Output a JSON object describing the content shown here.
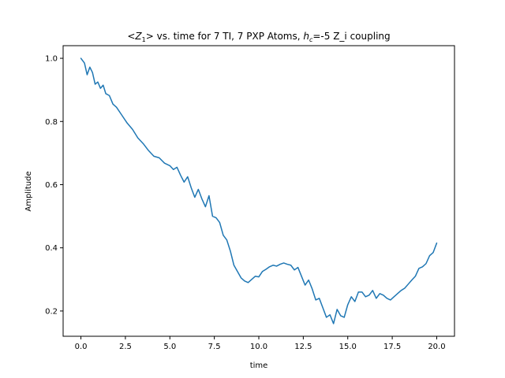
{
  "chart_data": {
    "type": "line",
    "title_parts": {
      "lt": "<",
      "z": "Z",
      "z_sub": "1",
      "gt": ">",
      "middle": " vs. time for 7 TI, 7 PXP Atoms, ",
      "h": "h",
      "h_sub": "c",
      "tail": "=-5 Z_i coupling"
    },
    "xlabel": "time",
    "ylabel": "Amplitude",
    "xlim": [
      -1.0,
      21.0
    ],
    "ylim": [
      0.12,
      1.04
    ],
    "xticks": [
      0.0,
      2.5,
      5.0,
      7.5,
      10.0,
      12.5,
      15.0,
      17.5,
      20.0
    ],
    "xtick_labels": [
      "0.0",
      "2.5",
      "5.0",
      "7.5",
      "10.0",
      "12.5",
      "15.0",
      "17.5",
      "20.0"
    ],
    "yticks": [
      0.2,
      0.4,
      0.6,
      0.8,
      1.0
    ],
    "ytick_labels": [
      "0.2",
      "0.4",
      "0.6",
      "0.8",
      "1.0"
    ],
    "grid": false,
    "line_color": "#1f77b4",
    "series": [
      {
        "x": [
          0.0,
          0.2,
          0.35,
          0.5,
          0.65,
          0.8,
          0.95,
          1.1,
          1.25,
          1.4,
          1.6,
          1.8,
          2.0,
          2.3,
          2.6,
          2.9,
          3.2,
          3.5,
          3.8,
          4.1,
          4.4,
          4.7,
          5.0,
          5.2,
          5.4,
          5.6,
          5.8,
          6.0,
          6.2,
          6.4,
          6.6,
          6.8,
          7.0,
          7.2,
          7.4,
          7.6,
          7.8,
          8.0,
          8.2,
          8.4,
          8.6,
          8.8,
          9.0,
          9.2,
          9.4,
          9.6,
          9.8,
          10.0,
          10.2,
          10.4,
          10.6,
          10.8,
          11.0,
          11.2,
          11.4,
          11.6,
          11.8,
          12.0,
          12.2,
          12.4,
          12.6,
          12.8,
          13.0,
          13.2,
          13.4,
          13.6,
          13.8,
          14.0,
          14.2,
          14.4,
          14.6,
          14.8,
          15.0,
          15.2,
          15.4,
          15.6,
          15.8,
          16.0,
          16.2,
          16.4,
          16.6,
          16.8,
          17.0,
          17.2,
          17.4,
          17.6,
          17.8,
          18.0,
          18.2,
          18.4,
          18.6,
          18.8,
          19.0,
          19.2,
          19.4,
          19.6,
          19.8,
          20.0
        ],
        "values": [
          1.0,
          0.985,
          0.948,
          0.972,
          0.955,
          0.918,
          0.925,
          0.905,
          0.915,
          0.888,
          0.882,
          0.855,
          0.845,
          0.82,
          0.795,
          0.775,
          0.748,
          0.73,
          0.708,
          0.69,
          0.685,
          0.668,
          0.66,
          0.648,
          0.655,
          0.63,
          0.608,
          0.625,
          0.59,
          0.56,
          0.585,
          0.555,
          0.53,
          0.565,
          0.5,
          0.495,
          0.48,
          0.44,
          0.425,
          0.39,
          0.345,
          0.325,
          0.305,
          0.295,
          0.29,
          0.3,
          0.31,
          0.308,
          0.325,
          0.332,
          0.34,
          0.345,
          0.342,
          0.348,
          0.352,
          0.348,
          0.345,
          0.33,
          0.338,
          0.31,
          0.282,
          0.298,
          0.27,
          0.235,
          0.24,
          0.21,
          0.18,
          0.188,
          0.16,
          0.205,
          0.185,
          0.18,
          0.22,
          0.245,
          0.23,
          0.26,
          0.26,
          0.245,
          0.25,
          0.265,
          0.24,
          0.255,
          0.25,
          0.24,
          0.235,
          0.245,
          0.255,
          0.265,
          0.272,
          0.285,
          0.298,
          0.31,
          0.335,
          0.34,
          0.35,
          0.375,
          0.385,
          0.415
        ]
      }
    ]
  }
}
